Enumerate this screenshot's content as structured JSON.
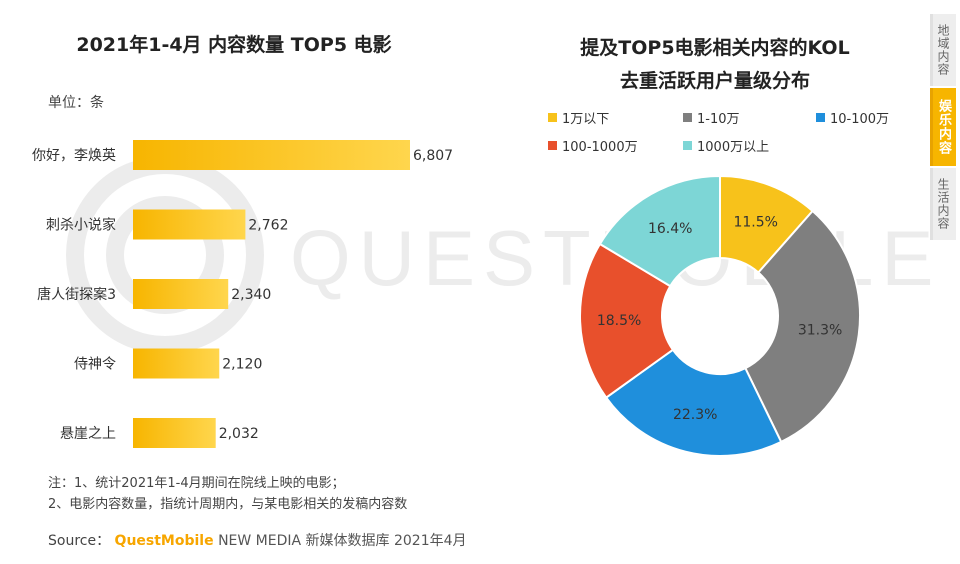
{
  "side_tabs": [
    {
      "label": "地域内容",
      "active": false
    },
    {
      "label": "娱乐内容",
      "active": true
    },
    {
      "label": "生活内容",
      "active": false
    }
  ],
  "watermark_text": "QUESTMOBILE",
  "colors": {
    "bar_gradient_start": "#f7b500",
    "bar_gradient_end": "#ffd64d",
    "accent": "#f7b500"
  },
  "chart_data": [
    {
      "type": "bar",
      "orientation": "horizontal",
      "title": "2021年1-4月 内容数量 TOP5 电影",
      "unit_label": "单位：条",
      "categories": [
        "你好，李焕英",
        "刺杀小说家",
        "唐人街探案3",
        "侍神令",
        "悬崖之上"
      ],
      "values": [
        6807,
        2762,
        2340,
        2120,
        2032
      ],
      "value_labels": [
        "6,807",
        "2,762",
        "2,340",
        "2,120",
        "2,032"
      ],
      "xlim": [
        0,
        6807
      ]
    },
    {
      "type": "pie",
      "donut": true,
      "title_lines": [
        "提及TOP5电影相关内容的KOL",
        "去重活跃用户量级分布"
      ],
      "legend_position": "top",
      "slices": [
        {
          "label": "1万以下",
          "value": 11.5,
          "value_label": "11.5%",
          "color": "#f7c21b"
        },
        {
          "label": "1-10万",
          "value": 31.3,
          "value_label": "31.3%",
          "color": "#7f7f7f"
        },
        {
          "label": "10-100万",
          "value": 22.3,
          "value_label": "22.3%",
          "color": "#1f8fdc"
        },
        {
          "label": "100-1000万",
          "value": 18.5,
          "value_label": "18.5%",
          "color": "#e8502c"
        },
        {
          "label": "1000万以上",
          "value": 16.4,
          "value_label": "16.4%",
          "color": "#7dd6d6"
        }
      ]
    }
  ],
  "notes": [
    "注：1、统计2021年1-4月期间在院线上映的电影；",
    "2、电影内容数量，指统计周期内，与某电影相关的发稿内容数"
  ],
  "source": {
    "prefix": "Source：",
    "brand": "QuestMobile",
    "rest": "NEW MEDIA 新媒体数据库 2021年4月"
  }
}
